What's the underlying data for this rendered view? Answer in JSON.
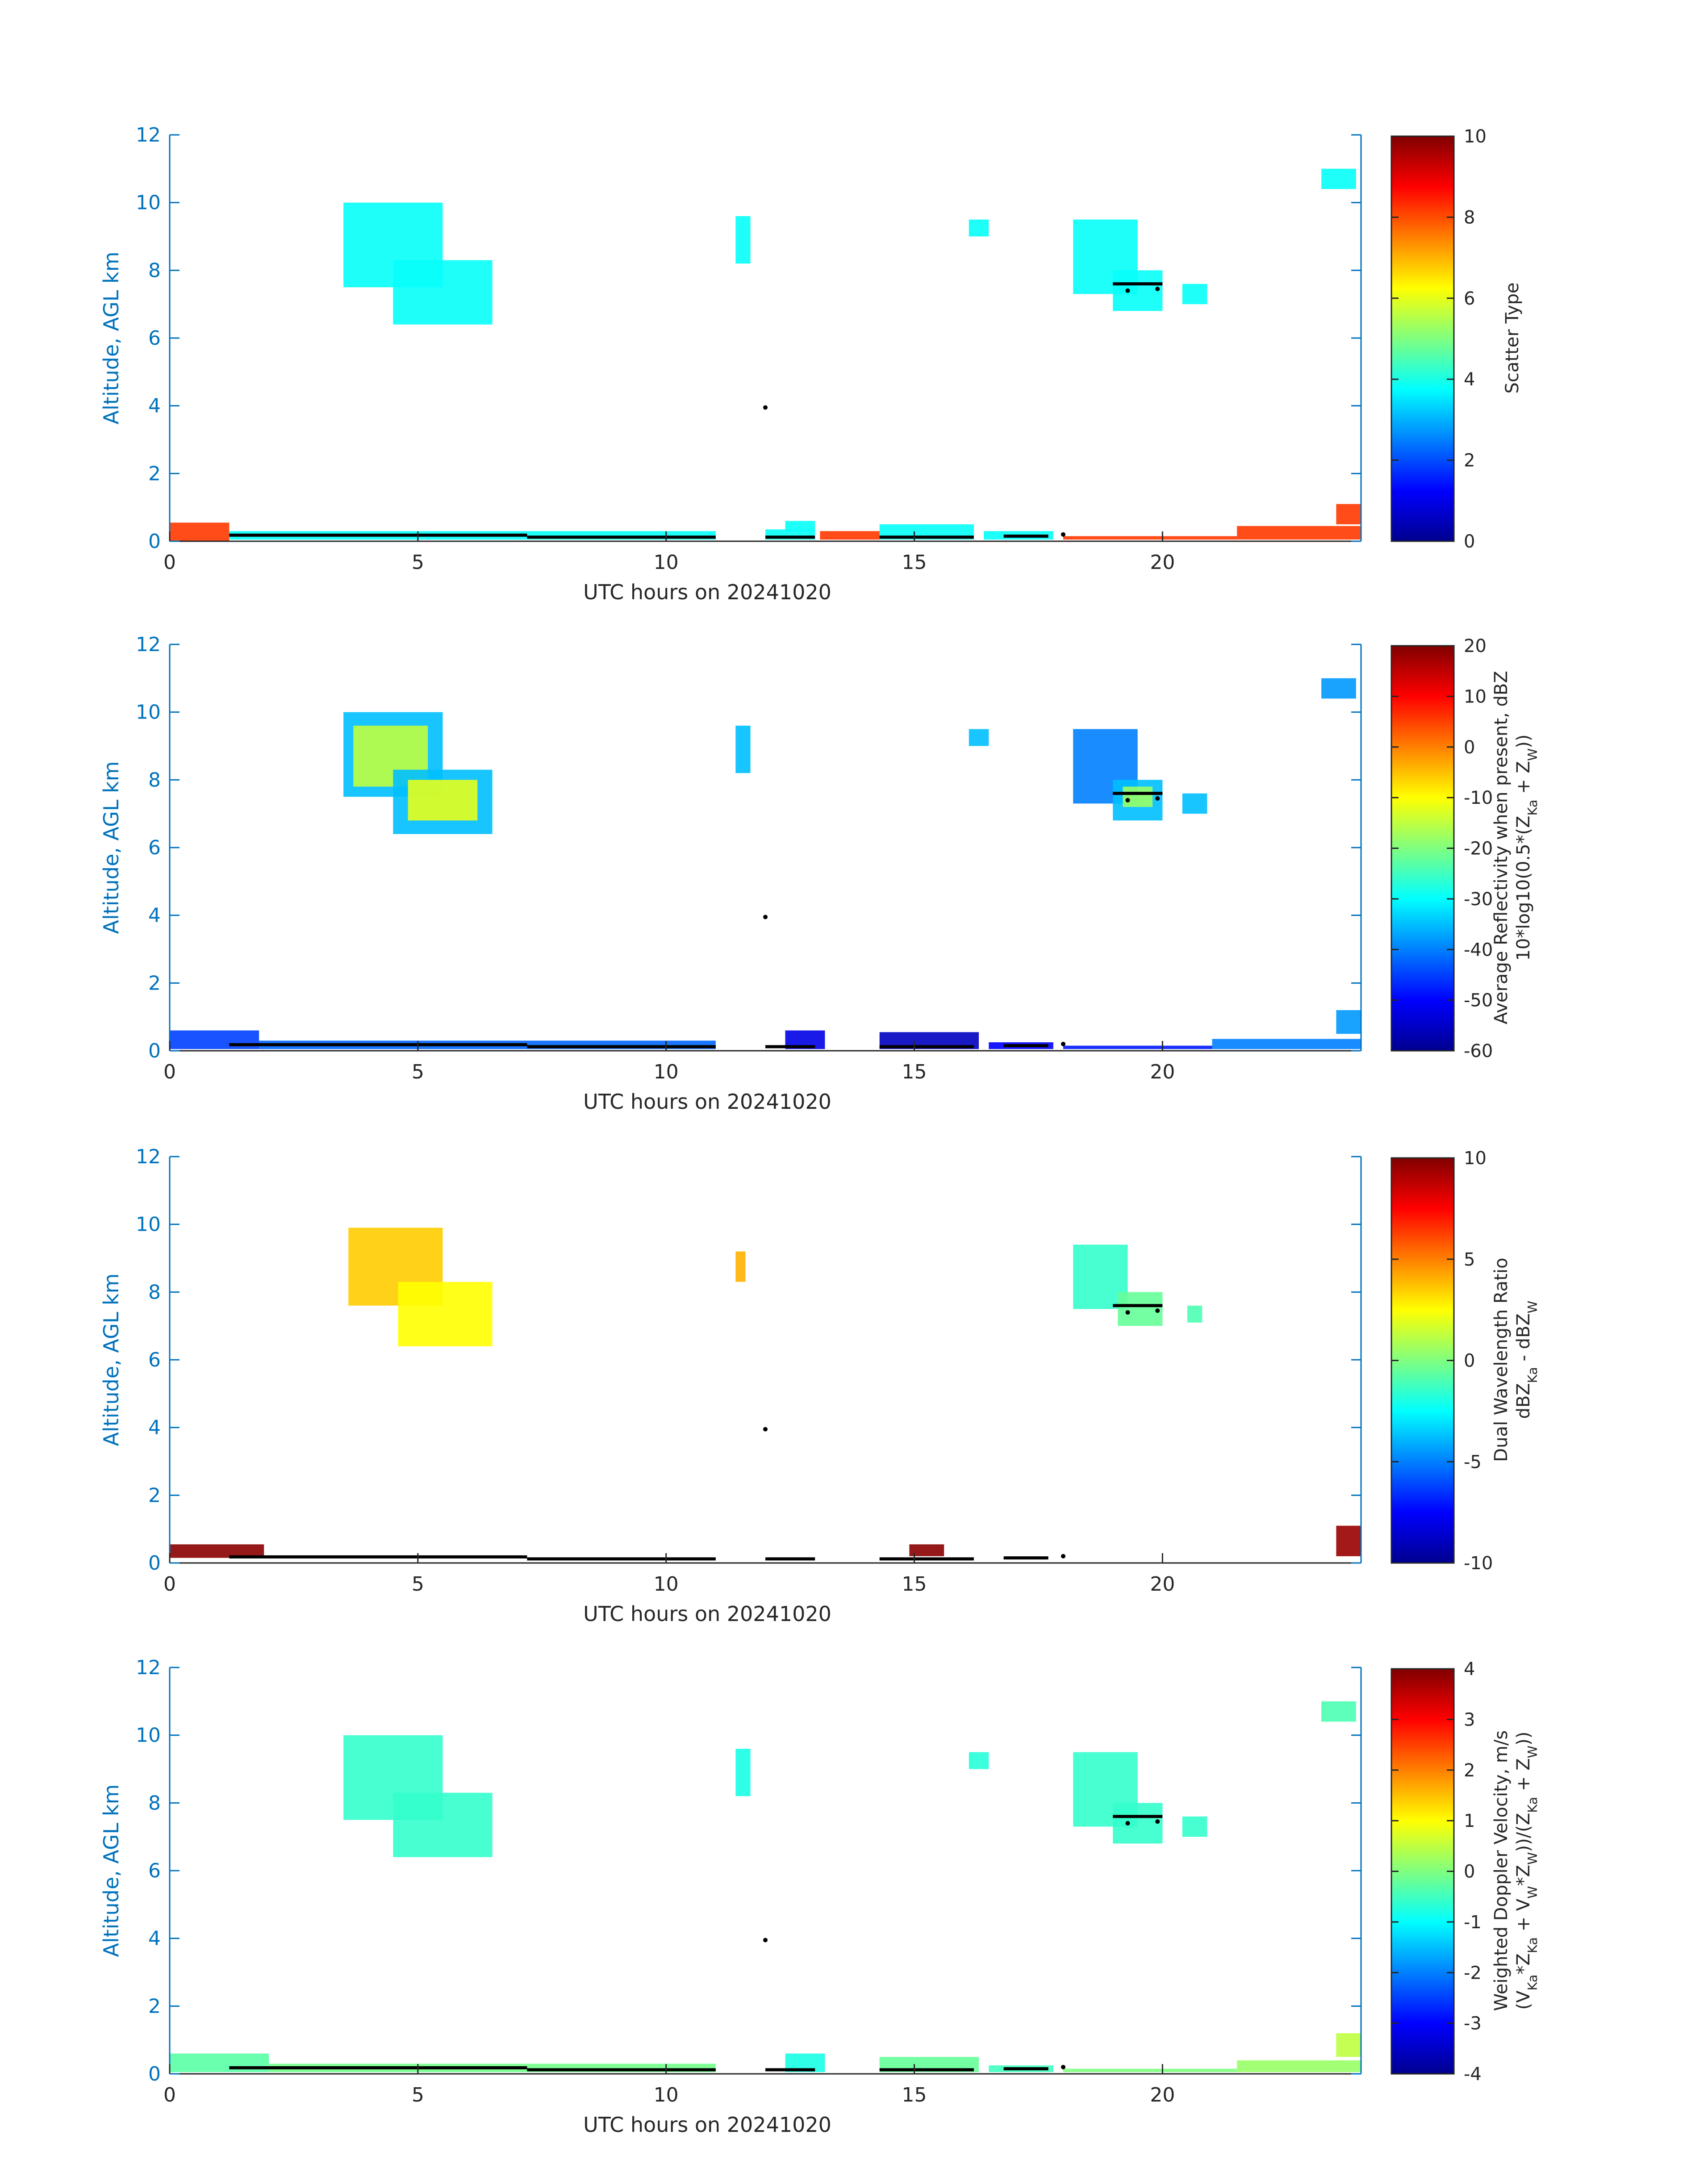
{
  "figure": {
    "date": "20241020",
    "colors": {
      "axis": "#0072bd",
      "text": "#262626",
      "ground_marker": "#000000"
    }
  },
  "chart_data": [
    {
      "type": "heatmap",
      "title": "",
      "xlabel": "UTC hours on 20241020",
      "ylabel": "Altitude, AGL km",
      "xlim": [
        0,
        24
      ],
      "ylim": [
        0,
        12
      ],
      "xticks": [
        0,
        5,
        10,
        15,
        20
      ],
      "yticks": [
        0,
        2,
        4,
        6,
        8,
        10,
        12
      ],
      "colorbar": {
        "label_lines": [
          "Scatter Type"
        ],
        "range": [
          0,
          10
        ],
        "ticks": [
          0,
          2,
          4,
          6,
          8,
          10
        ]
      },
      "regions": [
        {
          "t0": 3.5,
          "t1": 5.5,
          "z0": 7.5,
          "z1": 10.0,
          "value": 3.8
        },
        {
          "t0": 4.5,
          "t1": 6.5,
          "z0": 6.4,
          "z1": 8.3,
          "value": 3.8
        },
        {
          "t0": 11.4,
          "t1": 11.7,
          "z0": 8.2,
          "z1": 9.6,
          "value": 3.8
        },
        {
          "t0": 16.1,
          "t1": 16.5,
          "z0": 9.0,
          "z1": 9.5,
          "value": 3.8
        },
        {
          "t0": 18.2,
          "t1": 19.5,
          "z0": 7.3,
          "z1": 9.5,
          "value": 3.8
        },
        {
          "t0": 19.0,
          "t1": 20.0,
          "z0": 6.8,
          "z1": 8.0,
          "value": 3.8
        },
        {
          "t0": 20.4,
          "t1": 20.9,
          "z0": 7.0,
          "z1": 7.6,
          "value": 3.8
        },
        {
          "t0": 23.2,
          "t1": 23.9,
          "z0": 10.4,
          "z1": 11.0,
          "value": 3.8
        },
        {
          "t0": 0.0,
          "t1": 1.2,
          "z0": 0.0,
          "z1": 0.55,
          "value": 8.2
        },
        {
          "t0": 1.2,
          "t1": 11.0,
          "z0": 0.05,
          "z1": 0.3,
          "value": 3.8
        },
        {
          "t0": 12.0,
          "t1": 13.0,
          "z0": 0.05,
          "z1": 0.35,
          "value": 3.8
        },
        {
          "t0": 12.4,
          "t1": 13.0,
          "z0": 0.3,
          "z1": 0.6,
          "value": 3.8
        },
        {
          "t0": 13.1,
          "t1": 14.3,
          "z0": 0.05,
          "z1": 0.3,
          "value": 8.2
        },
        {
          "t0": 14.3,
          "t1": 16.2,
          "z0": 0.05,
          "z1": 0.5,
          "value": 3.8
        },
        {
          "t0": 16.4,
          "t1": 17.8,
          "z0": 0.05,
          "z1": 0.3,
          "value": 3.8
        },
        {
          "t0": 18.0,
          "t1": 21.5,
          "z0": 0.05,
          "z1": 0.15,
          "value": 8.2
        },
        {
          "t0": 21.5,
          "t1": 24.0,
          "z0": 0.05,
          "z1": 0.45,
          "value": 8.2
        },
        {
          "t0": 23.5,
          "t1": 24.0,
          "z0": 0.5,
          "z1": 1.1,
          "value": 8.2
        }
      ]
    },
    {
      "type": "heatmap",
      "title": "",
      "xlabel": "UTC hours on 20241020",
      "ylabel": "Altitude, AGL km",
      "xlim": [
        0,
        24
      ],
      "ylim": [
        0,
        12
      ],
      "xticks": [
        0,
        5,
        10,
        15,
        20
      ],
      "yticks": [
        0,
        2,
        4,
        6,
        8,
        10,
        12
      ],
      "colorbar": {
        "label_lines": [
          "Average Reflectivity when present, dBZ",
          "10*log10(0.5*(Z_Ka + Z_W))"
        ],
        "range": [
          -60,
          20
        ],
        "ticks": [
          -60,
          -50,
          -40,
          -30,
          -20,
          -10,
          0,
          10,
          20
        ]
      },
      "regions": [
        {
          "t0": 3.5,
          "t1": 5.5,
          "z0": 7.5,
          "z1": 10.0,
          "value": -35
        },
        {
          "t0": 3.7,
          "t1": 5.2,
          "z0": 7.8,
          "z1": 9.6,
          "value": -15
        },
        {
          "t0": 4.5,
          "t1": 6.5,
          "z0": 6.4,
          "z1": 8.3,
          "value": -35
        },
        {
          "t0": 4.8,
          "t1": 6.2,
          "z0": 6.8,
          "z1": 8.0,
          "value": -12
        },
        {
          "t0": 11.4,
          "t1": 11.7,
          "z0": 8.2,
          "z1": 9.6,
          "value": -35
        },
        {
          "t0": 16.1,
          "t1": 16.5,
          "z0": 9.0,
          "z1": 9.5,
          "value": -35
        },
        {
          "t0": 18.2,
          "t1": 19.5,
          "z0": 7.3,
          "z1": 9.5,
          "value": -40
        },
        {
          "t0": 19.0,
          "t1": 20.0,
          "z0": 6.8,
          "z1": 8.0,
          "value": -35
        },
        {
          "t0": 19.2,
          "t1": 19.8,
          "z0": 7.2,
          "z1": 7.8,
          "value": -18
        },
        {
          "t0": 20.4,
          "t1": 20.9,
          "z0": 7.0,
          "z1": 7.6,
          "value": -35
        },
        {
          "t0": 23.2,
          "t1": 23.9,
          "z0": 10.4,
          "z1": 11.0,
          "value": -38
        },
        {
          "t0": 0.0,
          "t1": 1.8,
          "z0": 0.05,
          "z1": 0.6,
          "value": -45
        },
        {
          "t0": 1.8,
          "t1": 11.0,
          "z0": 0.05,
          "z1": 0.3,
          "value": -42
        },
        {
          "t0": 12.4,
          "t1": 13.2,
          "z0": 0.05,
          "z1": 0.6,
          "value": -52
        },
        {
          "t0": 14.3,
          "t1": 16.3,
          "z0": 0.05,
          "z1": 0.55,
          "value": -55
        },
        {
          "t0": 16.5,
          "t1": 17.8,
          "z0": 0.05,
          "z1": 0.25,
          "value": -50
        },
        {
          "t0": 18.0,
          "t1": 21.0,
          "z0": 0.05,
          "z1": 0.15,
          "value": -48
        },
        {
          "t0": 21.0,
          "t1": 24.0,
          "z0": 0.05,
          "z1": 0.35,
          "value": -40
        },
        {
          "t0": 23.5,
          "t1": 24.0,
          "z0": 0.5,
          "z1": 1.2,
          "value": -38
        }
      ]
    },
    {
      "type": "heatmap",
      "title": "",
      "xlabel": "UTC hours on 20241020",
      "ylabel": "Altitude, AGL km",
      "xlim": [
        0,
        24
      ],
      "ylim": [
        0,
        12
      ],
      "xticks": [
        0,
        5,
        10,
        15,
        20
      ],
      "yticks": [
        0,
        2,
        4,
        6,
        8,
        10,
        12
      ],
      "colorbar": {
        "label_lines": [
          "Dual Wavelength Ratio",
          "dBZ_Ka - dBZ_W"
        ],
        "range": [
          -10,
          10
        ],
        "ticks": [
          -10,
          -5,
          0,
          5,
          10
        ]
      },
      "regions": [
        {
          "t0": 3.6,
          "t1": 5.5,
          "z0": 7.6,
          "z1": 9.9,
          "value": 3.5
        },
        {
          "t0": 4.6,
          "t1": 6.5,
          "z0": 6.4,
          "z1": 8.3,
          "value": 2.5
        },
        {
          "t0": 11.4,
          "t1": 11.6,
          "z0": 8.3,
          "z1": 9.2,
          "value": 4.0
        },
        {
          "t0": 18.2,
          "t1": 19.3,
          "z0": 7.5,
          "z1": 9.4,
          "value": -1.5
        },
        {
          "t0": 19.1,
          "t1": 20.0,
          "z0": 7.0,
          "z1": 8.0,
          "value": -0.5
        },
        {
          "t0": 20.5,
          "t1": 20.8,
          "z0": 7.1,
          "z1": 7.6,
          "value": -1.0
        },
        {
          "t0": 0.0,
          "t1": 1.9,
          "z0": 0.15,
          "z1": 0.55,
          "value": 9.8
        },
        {
          "t0": 14.9,
          "t1": 15.6,
          "z0": 0.2,
          "z1": 0.55,
          "value": 9.8
        },
        {
          "t0": 23.5,
          "t1": 24.0,
          "z0": 0.2,
          "z1": 1.1,
          "value": 9.5
        }
      ]
    },
    {
      "type": "heatmap",
      "title": "",
      "xlabel": "UTC hours on 20241020",
      "ylabel": "Altitude, AGL km",
      "xlim": [
        0,
        24
      ],
      "ylim": [
        0,
        12
      ],
      "xticks": [
        0,
        5,
        10,
        15,
        20
      ],
      "yticks": [
        0,
        2,
        4,
        6,
        8,
        10,
        12
      ],
      "colorbar": {
        "label_lines": [
          "Weighted Doppler Velocity, m/s",
          "(V_Ka*Z_Ka + V_W*Z_W))/(Z_Ka + Z_W))"
        ],
        "range": [
          -4,
          4
        ],
        "ticks": [
          -4,
          -3,
          -2,
          -1,
          0,
          1,
          2,
          3,
          4
        ]
      },
      "regions": [
        {
          "t0": 3.5,
          "t1": 5.5,
          "z0": 7.5,
          "z1": 10.0,
          "value": -0.6
        },
        {
          "t0": 4.5,
          "t1": 6.5,
          "z0": 6.4,
          "z1": 8.3,
          "value": -0.6
        },
        {
          "t0": 11.4,
          "t1": 11.7,
          "z0": 8.2,
          "z1": 9.6,
          "value": -0.8
        },
        {
          "t0": 16.1,
          "t1": 16.5,
          "z0": 9.0,
          "z1": 9.5,
          "value": -0.7
        },
        {
          "t0": 18.2,
          "t1": 19.5,
          "z0": 7.3,
          "z1": 9.5,
          "value": -0.6
        },
        {
          "t0": 19.0,
          "t1": 20.0,
          "z0": 6.8,
          "z1": 8.0,
          "value": -0.6
        },
        {
          "t0": 20.4,
          "t1": 20.9,
          "z0": 7.0,
          "z1": 7.6,
          "value": -0.6
        },
        {
          "t0": 23.2,
          "t1": 23.9,
          "z0": 10.4,
          "z1": 11.0,
          "value": -0.4
        },
        {
          "t0": 0.0,
          "t1": 2.0,
          "z0": 0.05,
          "z1": 0.6,
          "value": -0.3
        },
        {
          "t0": 2.0,
          "t1": 11.0,
          "z0": 0.05,
          "z1": 0.3,
          "value": -0.1
        },
        {
          "t0": 12.4,
          "t1": 13.2,
          "z0": 0.05,
          "z1": 0.6,
          "value": -0.8
        },
        {
          "t0": 14.3,
          "t1": 16.3,
          "z0": 0.05,
          "z1": 0.5,
          "value": -0.2
        },
        {
          "t0": 16.5,
          "t1": 17.8,
          "z0": 0.05,
          "z1": 0.25,
          "value": -0.5
        },
        {
          "t0": 18.0,
          "t1": 21.5,
          "z0": 0.05,
          "z1": 0.15,
          "value": 0.0
        },
        {
          "t0": 21.5,
          "t1": 24.0,
          "z0": 0.05,
          "z1": 0.4,
          "value": 0.2
        },
        {
          "t0": 23.5,
          "t1": 24.0,
          "z0": 0.5,
          "z1": 1.2,
          "value": 0.5
        }
      ]
    }
  ],
  "ground_markers": {
    "segments": [
      {
        "t0": 1.2,
        "t1": 7.2,
        "z": 0.18
      },
      {
        "t0": 7.2,
        "t1": 11.0,
        "z": 0.12
      },
      {
        "t0": 12.0,
        "t1": 13.0,
        "z": 0.12
      },
      {
        "t0": 14.3,
        "t1": 16.2,
        "z": 0.12
      },
      {
        "t0": 16.8,
        "t1": 17.7,
        "z": 0.15
      },
      {
        "t0": 19.0,
        "t1": 20.0,
        "z": 7.6
      }
    ],
    "points": [
      {
        "t": 12.0,
        "z": 3.95
      },
      {
        "t": 18.0,
        "z": 0.2
      },
      {
        "t": 19.3,
        "z": 7.4
      },
      {
        "t": 19.9,
        "z": 7.45
      }
    ]
  }
}
